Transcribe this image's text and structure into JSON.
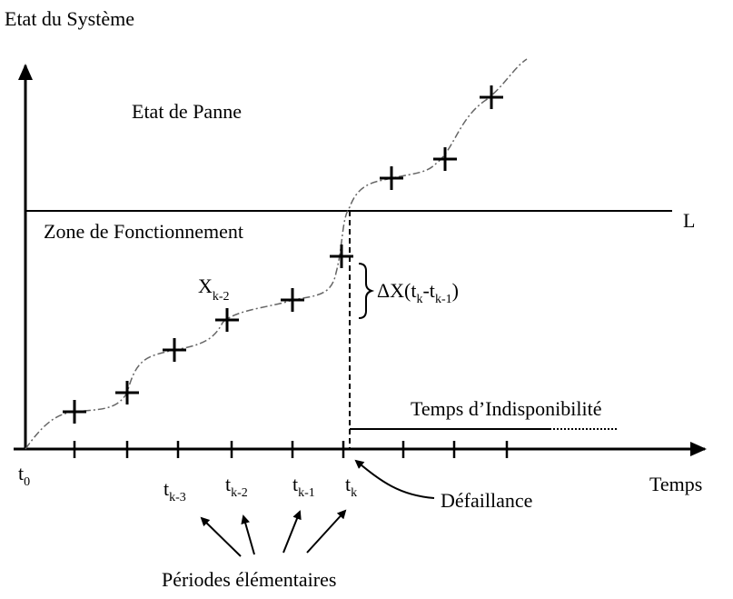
{
  "y_axis_label": "Etat du Système",
  "x_axis_label": "Temps",
  "failure_zone": "Etat de Panne",
  "working_zone": "Zone de Fonctionnement",
  "threshold": "L",
  "point_label": {
    "base": "X",
    "sub": "k-2"
  },
  "increment_label": [
    {
      "base": "ΔX(t",
      "sub": "k"
    },
    {
      "base": "-t",
      "sub": "k-1"
    },
    {
      "base": ")"
    }
  ],
  "downtime": "Temps d’Indisponibilité",
  "failure": "Défaillance",
  "periods": "Périodes élémentaires",
  "time_ticks": [
    {
      "base": "t",
      "sub": "0"
    },
    {
      "base": "t",
      "sub": "k-3"
    },
    {
      "base": "t",
      "sub": "k-2"
    },
    {
      "base": "t",
      "sub": "k-1"
    },
    {
      "base": "t",
      "sub": "k"
    }
  ]
}
